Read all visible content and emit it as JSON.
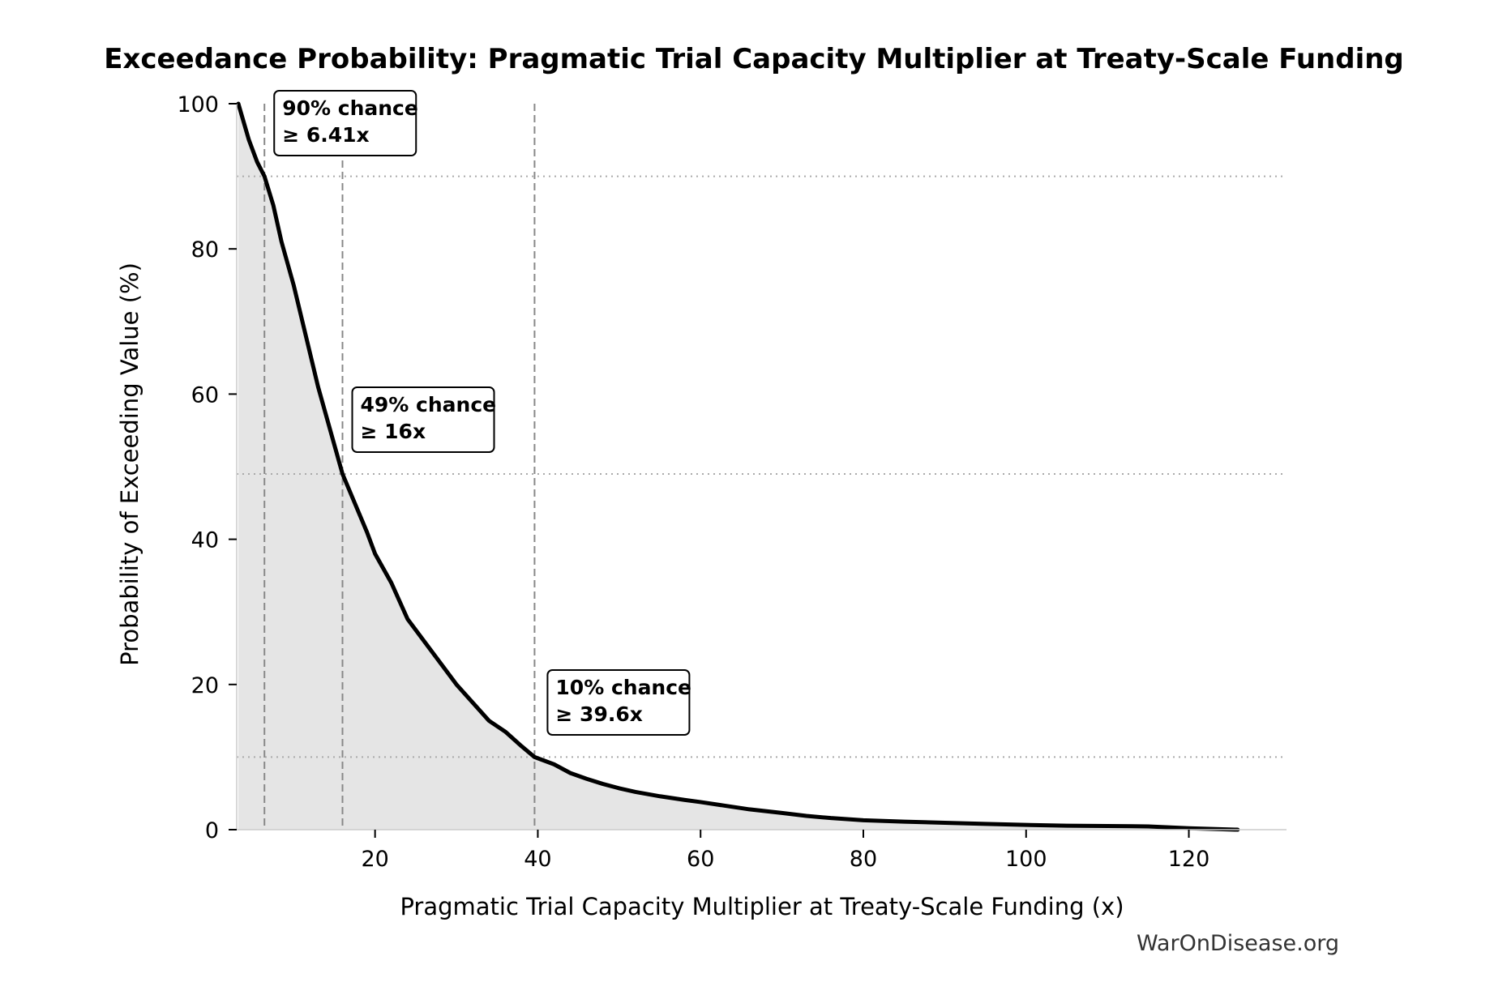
{
  "chart_data": {
    "type": "area",
    "title": "Exceedance Probability: Pragmatic Trial Capacity Multiplier at Treaty-Scale Funding",
    "xlabel": "Pragmatic Trial Capacity Multiplier at Treaty-Scale Funding (x)",
    "ylabel": "Probability of Exceeding Value (%)",
    "xlim": [
      3,
      132
    ],
    "ylim": [
      0,
      100
    ],
    "x_ticks": [
      20,
      40,
      60,
      80,
      100,
      120
    ],
    "y_ticks": [
      0,
      20,
      40,
      60,
      80,
      100
    ],
    "grid": false,
    "series": [
      {
        "points": [
          [
            3.2,
            100
          ],
          [
            4.5,
            95
          ],
          [
            5.5,
            92
          ],
          [
            6.41,
            90
          ],
          [
            7.5,
            86
          ],
          [
            8.5,
            81
          ],
          [
            10,
            75
          ],
          [
            11.5,
            68
          ],
          [
            13,
            61
          ],
          [
            14.5,
            55
          ],
          [
            16,
            49
          ],
          [
            17.5,
            45
          ],
          [
            19,
            41
          ],
          [
            20,
            38
          ],
          [
            22,
            34
          ],
          [
            24,
            29
          ],
          [
            26,
            26
          ],
          [
            28,
            23
          ],
          [
            30,
            20
          ],
          [
            32,
            17.5
          ],
          [
            34,
            15
          ],
          [
            36,
            13.5
          ],
          [
            38,
            11.5
          ],
          [
            39.6,
            10
          ],
          [
            42,
            9
          ],
          [
            44,
            7.8
          ],
          [
            46,
            7
          ],
          [
            48,
            6.3
          ],
          [
            50,
            5.7
          ],
          [
            52,
            5.2
          ],
          [
            55,
            4.6
          ],
          [
            58,
            4.1
          ],
          [
            60,
            3.8
          ],
          [
            63,
            3.3
          ],
          [
            66,
            2.8
          ],
          [
            70,
            2.3
          ],
          [
            73,
            1.9
          ],
          [
            76,
            1.6
          ],
          [
            80,
            1.3
          ],
          [
            85,
            1.1
          ],
          [
            90,
            0.95
          ],
          [
            95,
            0.8
          ],
          [
            100,
            0.65
          ],
          [
            105,
            0.55
          ],
          [
            110,
            0.5
          ],
          [
            115,
            0.45
          ],
          [
            120,
            0.2
          ],
          [
            126,
            0
          ]
        ]
      }
    ],
    "reference_lines": {
      "vertical_x": [
        6.41,
        16,
        39.6
      ],
      "horizontal_y": [
        90,
        49,
        10
      ]
    },
    "annotations": [
      {
        "x": 6.41,
        "y": 90,
        "line1": "90% chance",
        "line2": "≥ 6.41x"
      },
      {
        "x": 16,
        "y": 49,
        "line1": "49% chance",
        "line2": "≥ 16x"
      },
      {
        "x": 39.6,
        "y": 10,
        "line1": "10% chance",
        "line2": "≥ 39.6x"
      }
    ],
    "colors": {
      "line": "#000000",
      "fill": "#e5e5e5",
      "reference": "#888888"
    }
  },
  "watermark": "WarOnDisease.org"
}
